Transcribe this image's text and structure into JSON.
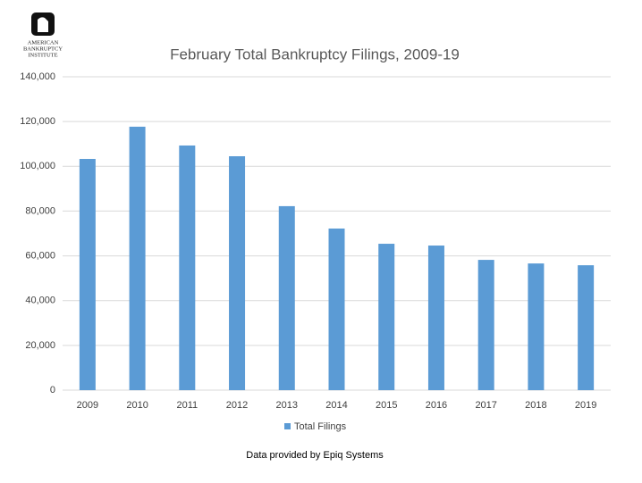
{
  "logo": {
    "lines": [
      "AMERICAN",
      "BANKRUPTCY",
      "INSTITUTE"
    ]
  },
  "chart_data": {
    "type": "bar",
    "title": "February Total Bankruptcy Filings, 2009-19",
    "categories": [
      "2009",
      "2010",
      "2011",
      "2012",
      "2013",
      "2014",
      "2015",
      "2016",
      "2017",
      "2018",
      "2019"
    ],
    "series": [
      {
        "name": "Total Filings",
        "color": "#5b9bd5",
        "values": [
          103300,
          117700,
          109300,
          104500,
          82200,
          72200,
          65400,
          64600,
          58200,
          56600,
          55800
        ]
      }
    ],
    "ylim": [
      0,
      140000
    ],
    "yticks": [
      0,
      {
        "value": 20000,
        "label": "20,000"
      },
      {
        "value": 40000,
        "label": "40,000"
      },
      {
        "value": 60000,
        "label": "60,000"
      },
      {
        "value": 80000,
        "label": "80,000"
      },
      {
        "value": 100000,
        "label": "100,000"
      },
      {
        "value": 120000,
        "label": "120,000"
      },
      {
        "value": 140000,
        "label": "140,000"
      }
    ],
    "grid": true,
    "legend": "bottom",
    "source": "Data provided by Epiq Systems"
  }
}
